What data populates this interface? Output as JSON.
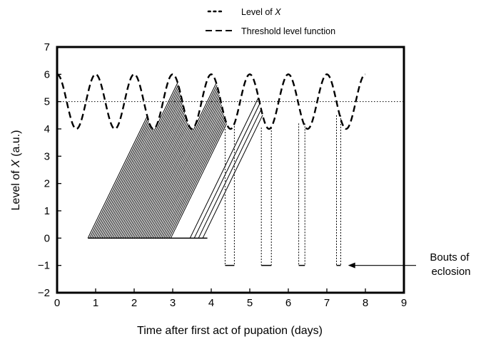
{
  "chart_data": {
    "type": "line",
    "xlabel": "Time after first act of pupation (days)",
    "ylabel": {
      "pre": "Level of ",
      "var": "X",
      "post": " (a.u.)"
    },
    "xlim": [
      0,
      9
    ],
    "ylim": [
      -2,
      7
    ],
    "xticks": [
      0,
      1,
      2,
      3,
      4,
      5,
      6,
      7,
      8,
      9
    ],
    "yticks": [
      7,
      6,
      5,
      4,
      3,
      2,
      1,
      0,
      -1,
      -2
    ],
    "xtick_labels": [
      "0",
      "1",
      "2",
      "3",
      "4",
      "5",
      "6",
      "7",
      "8",
      "9"
    ],
    "ytick_labels": [
      "7",
      "6",
      "5",
      "4",
      "3",
      "2",
      "1",
      "0",
      "−1",
      "−2"
    ],
    "legend_position": "above-plot",
    "legend": [
      {
        "key": "level",
        "style": "dotted",
        "pre": "Level of ",
        "var": "X"
      },
      {
        "key": "threshold",
        "style": "dashed",
        "label": "Threshold level function"
      }
    ],
    "threshold_function": {
      "mean": 5,
      "amplitude": 1,
      "period_days": 1,
      "peak_at_day": 0,
      "x_range": [
        0,
        8
      ]
    },
    "reference_line": {
      "y": 5,
      "x_range": [
        0,
        9
      ],
      "style": "dotted"
    },
    "level_of_x": {
      "slope_per_day": 2.9,
      "start_level": 0,
      "baseline_x_range": [
        0.8,
        3.9
      ],
      "ramp_groups": [
        {
          "start_x_range": [
            0.8,
            2.95
          ],
          "count": 48
        },
        {
          "start_x_range": [
            3.45,
            3.78
          ],
          "count": 4
        }
      ],
      "eclosion_bouts": [
        {
          "x_start": 4.36,
          "x_end": 4.6,
          "y_top": 4.1,
          "y_bottom": -1
        },
        {
          "x_start": 5.3,
          "x_end": 5.56,
          "y_top": 4.05,
          "y_bottom": -1
        },
        {
          "x_start": 6.27,
          "x_end": 6.43,
          "y_top": 4.2,
          "y_bottom": -1
        },
        {
          "x_start": 7.25,
          "x_end": 7.36,
          "y_top": 4.5,
          "y_bottom": -1
        }
      ]
    },
    "annotation": {
      "lines": [
        "Bouts of",
        "eclosion"
      ],
      "arrow_target": [
        7.55,
        -1
      ]
    }
  }
}
